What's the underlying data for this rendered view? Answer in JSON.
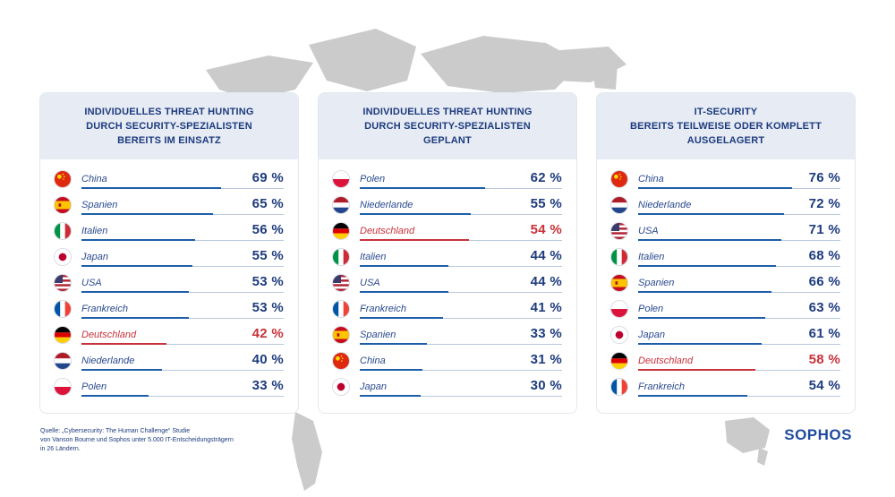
{
  "theme": {
    "primary": "#1d3b7e",
    "bar": "#1e5ea8",
    "highlight": "#c8323a",
    "map": "#cbcbcb",
    "header_bg": "#e6ebf4"
  },
  "panels": [
    {
      "title": "INDIVIDUELLES THREAT HUNTING\nDURCH SECURITY-SPEZIALISTEN\nBEREITS IM EINSATZ"
    },
    {
      "title": "INDIVIDUELLES THREAT HUNTING\nDURCH SECURITY-SPEZIALISTEN\nGEPLANT"
    },
    {
      "title": "IT-SECURITY\nBEREITS TEILWEISE ODER KOMPLETT\nAUSGELAGERT"
    }
  ],
  "chart_data": [
    {
      "type": "bar",
      "title": "INDIVIDUELLES THREAT HUNTING DURCH SECURITY-SPEZIALISTEN BEREITS IM EINSATZ",
      "categories": [
        "China",
        "Spanien",
        "Italien",
        "Japan",
        "USA",
        "Frankreich",
        "Deutschland",
        "Niederlande",
        "Polen"
      ],
      "values": [
        69,
        65,
        56,
        55,
        53,
        53,
        42,
        40,
        33
      ],
      "labels": [
        "69 %",
        "65 %",
        "56 %",
        "55 %",
        "53 %",
        "53 %",
        "42 %",
        "40 %",
        "33 %"
      ],
      "flags": [
        "china",
        "spain",
        "italy",
        "japan",
        "usa",
        "france",
        "germany",
        "netherlands",
        "poland"
      ],
      "highlight": "Deutschland",
      "ylim": [
        0,
        100
      ]
    },
    {
      "type": "bar",
      "title": "INDIVIDUELLES THREAT HUNTING DURCH SECURITY-SPEZIALISTEN GEPLANT",
      "categories": [
        "Polen",
        "Niederlande",
        "Deutschland",
        "Italien",
        "USA",
        "Frankreich",
        "Spanien",
        "China",
        "Japan"
      ],
      "values": [
        62,
        55,
        54,
        44,
        44,
        41,
        33,
        31,
        30
      ],
      "labels": [
        "62 %",
        "55 %",
        "54 %",
        "44 %",
        "44 %",
        "41 %",
        "33 %",
        "31 %",
        "30 %"
      ],
      "flags": [
        "poland",
        "netherlands",
        "germany",
        "italy",
        "usa",
        "france",
        "spain",
        "china",
        "japan"
      ],
      "highlight": "Deutschland",
      "ylim": [
        0,
        100
      ]
    },
    {
      "type": "bar",
      "title": "IT-SECURITY BEREITS TEILWEISE ODER KOMPLETT AUSGELAGERT",
      "categories": [
        "China",
        "Niederlande",
        "USA",
        "Italien",
        "Spanien",
        "Polen",
        "Japan",
        "Deutschland",
        "Frankreich"
      ],
      "values": [
        76,
        72,
        71,
        68,
        66,
        63,
        61,
        58,
        54
      ],
      "labels": [
        "76 %",
        "72 %",
        "71 %",
        "68 %",
        "66 %",
        "63 %",
        "61 %",
        "58 %",
        "54 %"
      ],
      "flags": [
        "china",
        "netherlands",
        "usa",
        "italy",
        "spain",
        "poland",
        "japan",
        "germany",
        "france"
      ],
      "highlight": "Deutschland",
      "ylim": [
        0,
        100
      ]
    }
  ],
  "footer": {
    "source": "Quelle: „Cybersecurity: The Human Challenge“ Studie\nvon Vanson Bourne und Sophos unter 5.000 IT-Entscheidungsträgern\nin 26 Ländern.",
    "brand": "SOPHOS"
  }
}
